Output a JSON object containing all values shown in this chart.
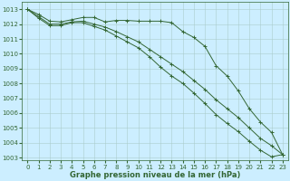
{
  "title": "Graphe pression niveau de la mer (hPa)",
  "bg_color": "#cceeff",
  "grid_color": "#aacccc",
  "line_color": "#336633",
  "xlim_min": -0.5,
  "xlim_max": 23.5,
  "ylim_min": 1002.8,
  "ylim_max": 1013.5,
  "xticks": [
    0,
    1,
    2,
    3,
    4,
    5,
    6,
    7,
    8,
    9,
    10,
    11,
    12,
    13,
    14,
    15,
    16,
    17,
    18,
    19,
    20,
    21,
    22,
    23
  ],
  "yticks": [
    1003,
    1004,
    1005,
    1006,
    1007,
    1008,
    1009,
    1010,
    1011,
    1012,
    1013
  ],
  "series1": [
    1013.0,
    1012.65,
    1012.2,
    1012.15,
    1012.3,
    1012.45,
    1012.45,
    1012.15,
    1012.25,
    1012.25,
    1012.2,
    1012.2,
    1012.2,
    1012.1,
    1011.5,
    1011.1,
    1010.5,
    1009.2,
    1008.5,
    1007.5,
    1006.3,
    1005.4,
    1004.7,
    1003.2
  ],
  "series2": [
    1013.0,
    1012.5,
    1012.0,
    1012.0,
    1012.15,
    1012.2,
    1012.0,
    1011.8,
    1011.5,
    1011.15,
    1010.8,
    1010.3,
    1009.8,
    1009.3,
    1008.8,
    1008.2,
    1007.6,
    1006.9,
    1006.3,
    1005.7,
    1005.0,
    1004.3,
    1003.8,
    1003.2
  ],
  "series3": [
    1013.0,
    1012.4,
    1011.9,
    1011.9,
    1012.1,
    1012.1,
    1011.85,
    1011.6,
    1011.2,
    1010.8,
    1010.4,
    1009.8,
    1009.1,
    1008.5,
    1008.0,
    1007.35,
    1006.65,
    1005.9,
    1005.3,
    1004.75,
    1004.1,
    1003.5,
    1003.05,
    1003.2
  ],
  "tick_fontsize": 5,
  "xlabel_fontsize": 6,
  "linewidth": 0.7,
  "markersize": 2.5
}
